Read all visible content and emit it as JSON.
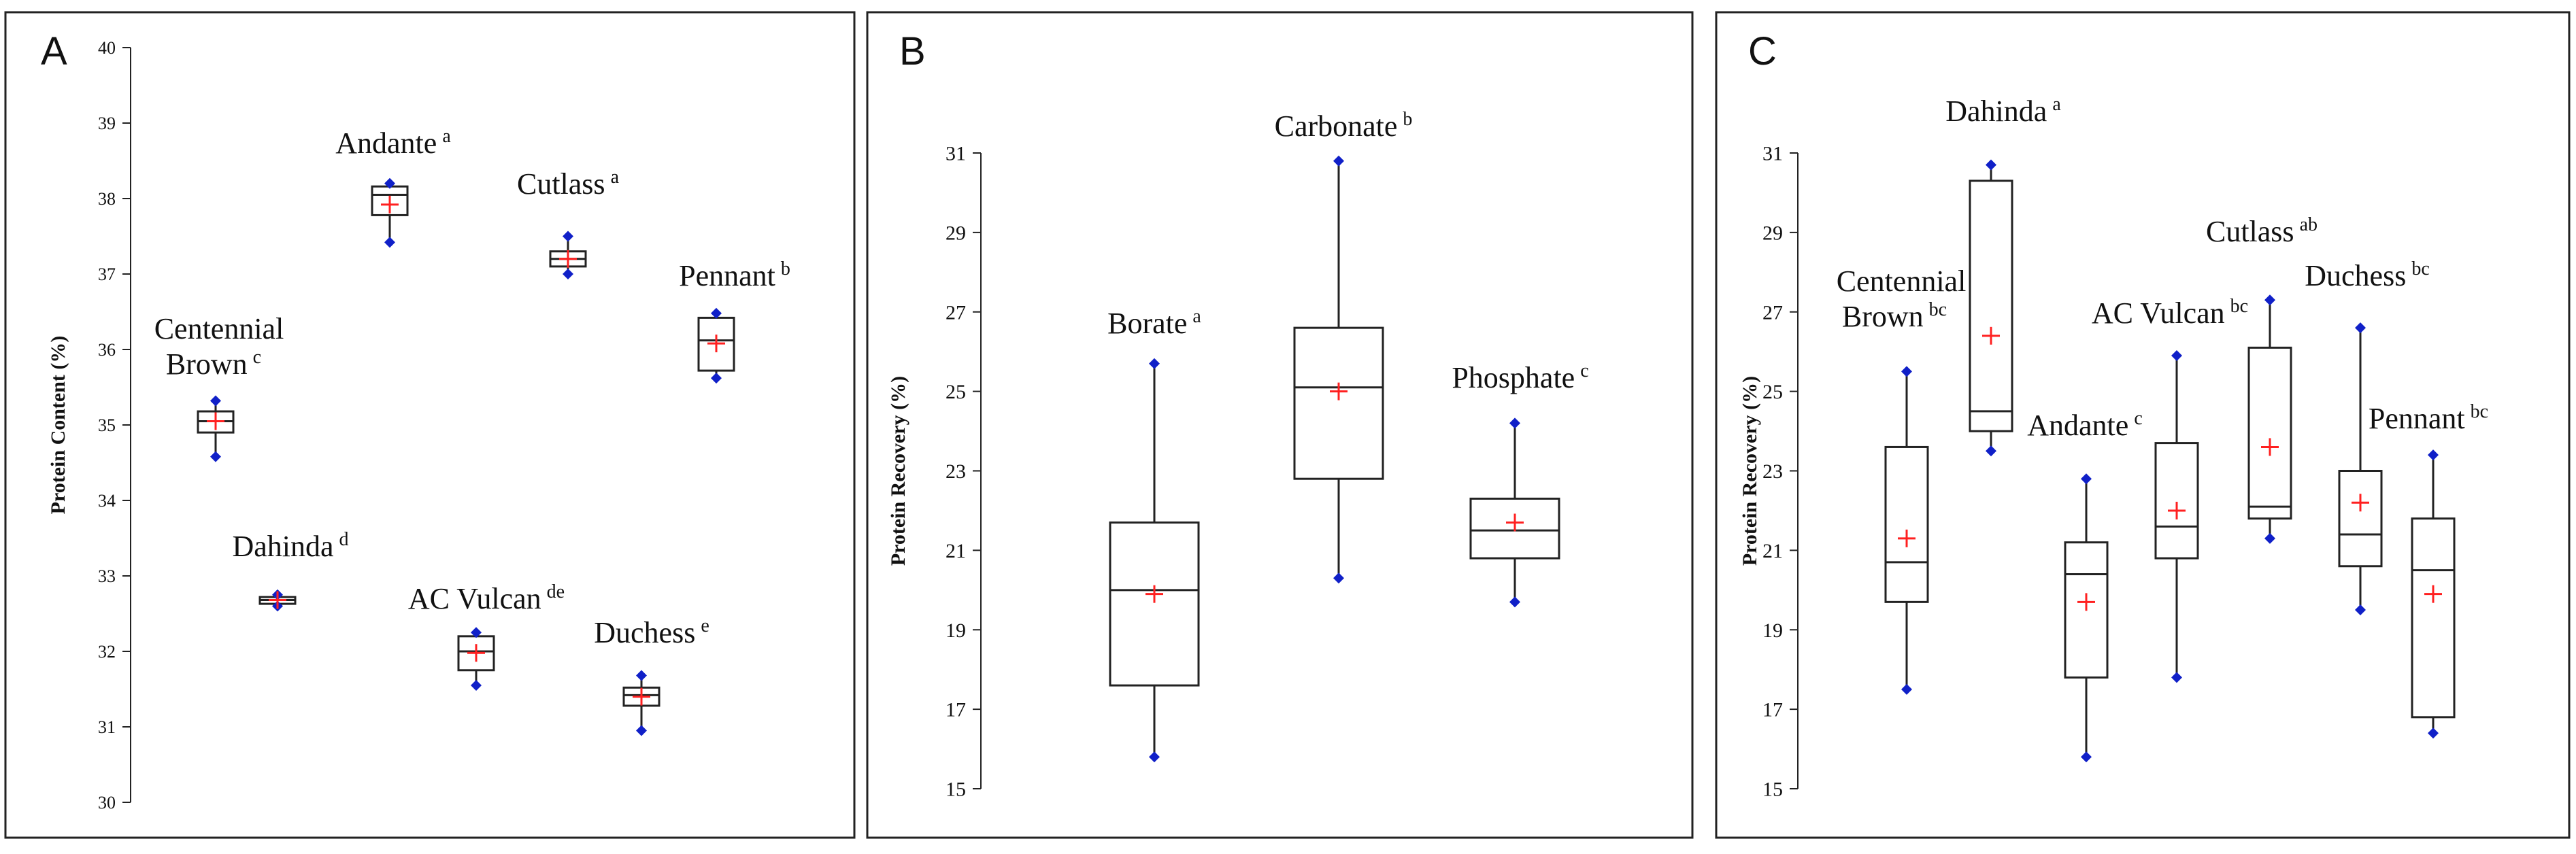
{
  "chart_data": [
    {
      "panel": "A",
      "type": "boxplot",
      "ylabel": "Protein Content (%)",
      "ylim": [
        30,
        40
      ],
      "yticks": [
        "30",
        "31",
        "32",
        "33",
        "34",
        "35",
        "36",
        "37",
        "38",
        "39",
        "40"
      ],
      "series": [
        {
          "name": "Centennial Brown",
          "sup": "c",
          "min": 34.58,
          "q1": 34.9,
          "median": 35.05,
          "q3": 35.18,
          "max": 35.32,
          "mean": 35.05
        },
        {
          "name": "Dahinda",
          "sup": "d",
          "min": 32.6,
          "q1": 32.63,
          "median": 32.68,
          "q3": 32.72,
          "max": 32.75,
          "mean": 32.68
        },
        {
          "name": "Andante",
          "sup": "a",
          "min": 37.42,
          "q1": 37.78,
          "median": 38.05,
          "q3": 38.16,
          "max": 38.2,
          "mean": 37.92
        },
        {
          "name": "AC Vulcan",
          "sup": "de",
          "min": 31.55,
          "q1": 31.75,
          "median": 32.0,
          "q3": 32.2,
          "max": 32.25,
          "mean": 31.98
        },
        {
          "name": "Cutlass",
          "sup": "a",
          "min": 37.0,
          "q1": 37.1,
          "median": 37.2,
          "q3": 37.3,
          "max": 37.5,
          "mean": 37.2
        },
        {
          "name": "Duchess",
          "sup": "e",
          "min": 30.95,
          "q1": 31.28,
          "median": 31.42,
          "q3": 31.52,
          "max": 31.68,
          "mean": 31.4
        },
        {
          "name": "Pennant",
          "sup": "b",
          "min": 35.62,
          "q1": 35.72,
          "median": 36.12,
          "q3": 36.42,
          "max": 36.48,
          "mean": 36.08
        }
      ]
    },
    {
      "panel": "B",
      "type": "boxplot",
      "ylabel": "Protein Recovery (%)",
      "ylim": [
        15,
        31
      ],
      "yticks": [
        "15",
        "17",
        "19",
        "21",
        "23",
        "25",
        "27",
        "29",
        "31"
      ],
      "series": [
        {
          "name": "Borate",
          "sup": "a",
          "min": 15.8,
          "q1": 17.6,
          "median": 20.0,
          "q3": 21.7,
          "max": 25.7,
          "mean": 19.9
        },
        {
          "name": "Carbonate",
          "sup": "b",
          "min": 20.3,
          "q1": 22.8,
          "median": 25.1,
          "q3": 26.6,
          "max": 30.8,
          "mean": 25.0
        },
        {
          "name": "Phosphate",
          "sup": "c",
          "min": 19.7,
          "q1": 20.8,
          "median": 21.5,
          "q3": 22.3,
          "max": 24.2,
          "mean": 21.7
        }
      ]
    },
    {
      "panel": "C",
      "type": "boxplot",
      "ylabel": "Protein Recovery (%)",
      "ylim": [
        15,
        31
      ],
      "yticks": [
        "15",
        "17",
        "19",
        "21",
        "23",
        "25",
        "27",
        "29",
        "31"
      ],
      "series": [
        {
          "name": "Centennial Brown",
          "sup": "bc",
          "min": 17.5,
          "q1": 19.7,
          "median": 20.7,
          "q3": 23.6,
          "max": 25.5,
          "mean": 21.3
        },
        {
          "name": "Dahinda",
          "sup": "a",
          "min": 23.5,
          "q1": 24.0,
          "median": 24.5,
          "q3": 30.3,
          "max": 30.7,
          "mean": 26.4
        },
        {
          "name": "Andante",
          "sup": "c",
          "min": 15.8,
          "q1": 17.8,
          "median": 20.4,
          "q3": 21.2,
          "max": 22.8,
          "mean": 19.7
        },
        {
          "name": "AC Vulcan",
          "sup": "bc",
          "min": 17.8,
          "q1": 20.8,
          "median": 21.6,
          "q3": 23.7,
          "max": 25.9,
          "mean": 22.0
        },
        {
          "name": "Cutlass",
          "sup": "ab",
          "min": 21.3,
          "q1": 21.8,
          "median": 22.1,
          "q3": 26.1,
          "max": 27.3,
          "mean": 23.6
        },
        {
          "name": "Duchess",
          "sup": "bc",
          "min": 19.5,
          "q1": 20.6,
          "median": 21.4,
          "q3": 23.0,
          "max": 26.6,
          "mean": 22.2
        },
        {
          "name": "Pennant",
          "sup": "bc",
          "min": 16.4,
          "q1": 16.8,
          "median": 20.5,
          "q3": 21.8,
          "max": 23.4,
          "mean": 19.9
        }
      ]
    }
  ],
  "colors": {
    "box_stroke": "#222222",
    "min_max_marker": "#1020c8",
    "mean_marker": "#ff2020",
    "frame": "#222222"
  }
}
